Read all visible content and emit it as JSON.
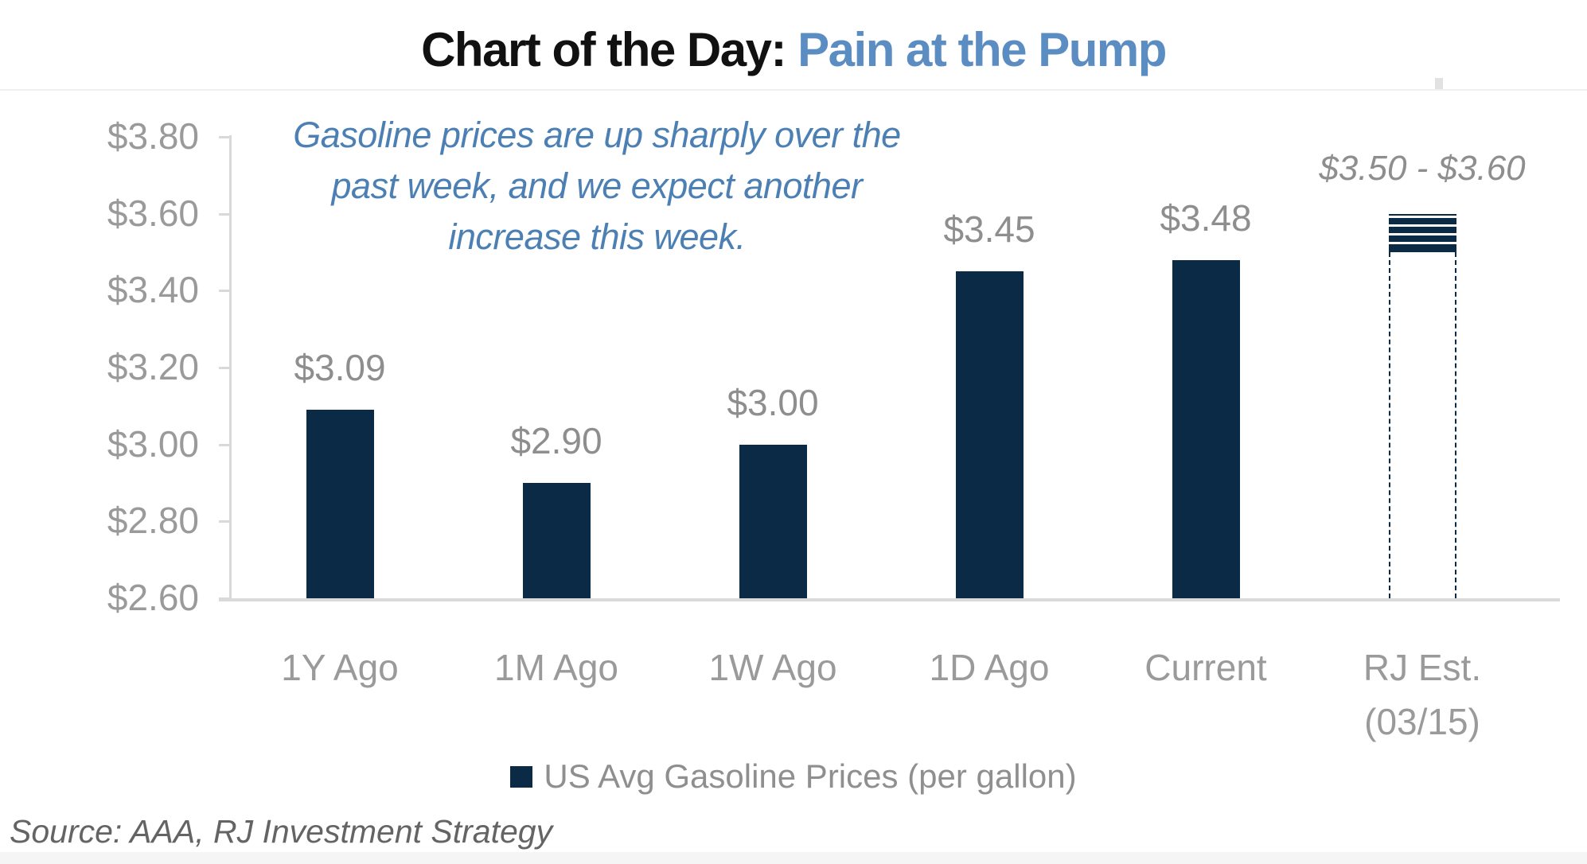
{
  "title": {
    "black": "Chart of the Day:",
    "blue": "Pain at the Pump"
  },
  "annotation": {
    "lines": [
      "Gasoline prices are up sharply over the",
      "past week, and we expect another",
      "increase this week."
    ]
  },
  "chart_data": {
    "type": "bar",
    "title": "Chart of the Day: Pain at the Pump",
    "categories": [
      "1Y Ago",
      "1M Ago",
      "1W Ago",
      "1D Ago",
      "Current",
      "RJ Est."
    ],
    "values": [
      3.09,
      2.9,
      3.0,
      3.45,
      3.48,
      null
    ],
    "value_labels": [
      "$3.09",
      "$2.90",
      "$3.00",
      "$3.45",
      "$3.48",
      null
    ],
    "estimate": {
      "category": "RJ Est.",
      "category_sublabel": "(03/15)",
      "low": 3.5,
      "high": 3.6,
      "label": "$3.50 - $3.60"
    },
    "xlabel": "",
    "ylabel": "",
    "ylim": [
      2.6,
      3.8
    ],
    "yticks": [
      3.8,
      3.6,
      3.4,
      3.2,
      3.0,
      2.8,
      2.6
    ],
    "ytick_labels": [
      "$3.80",
      "$3.60",
      "$3.40",
      "$3.20",
      "$3.00",
      "$2.80",
      "$2.60"
    ],
    "grid": false,
    "legend_position": "bottom",
    "bar_color": "#0a2a45",
    "label_color": "#9a9a9a"
  },
  "legend": {
    "label": "US Avg Gasoline Prices (per gallon)"
  },
  "source": "Source: AAA, RJ Investment Strategy",
  "colors": {
    "bar_navy": "#0a2a45",
    "title_blue": "#5b8cc2",
    "annotation_blue": "#4c80b4",
    "axis_gray": "#d9d9d9",
    "text_gray": "#9a9a9a"
  }
}
